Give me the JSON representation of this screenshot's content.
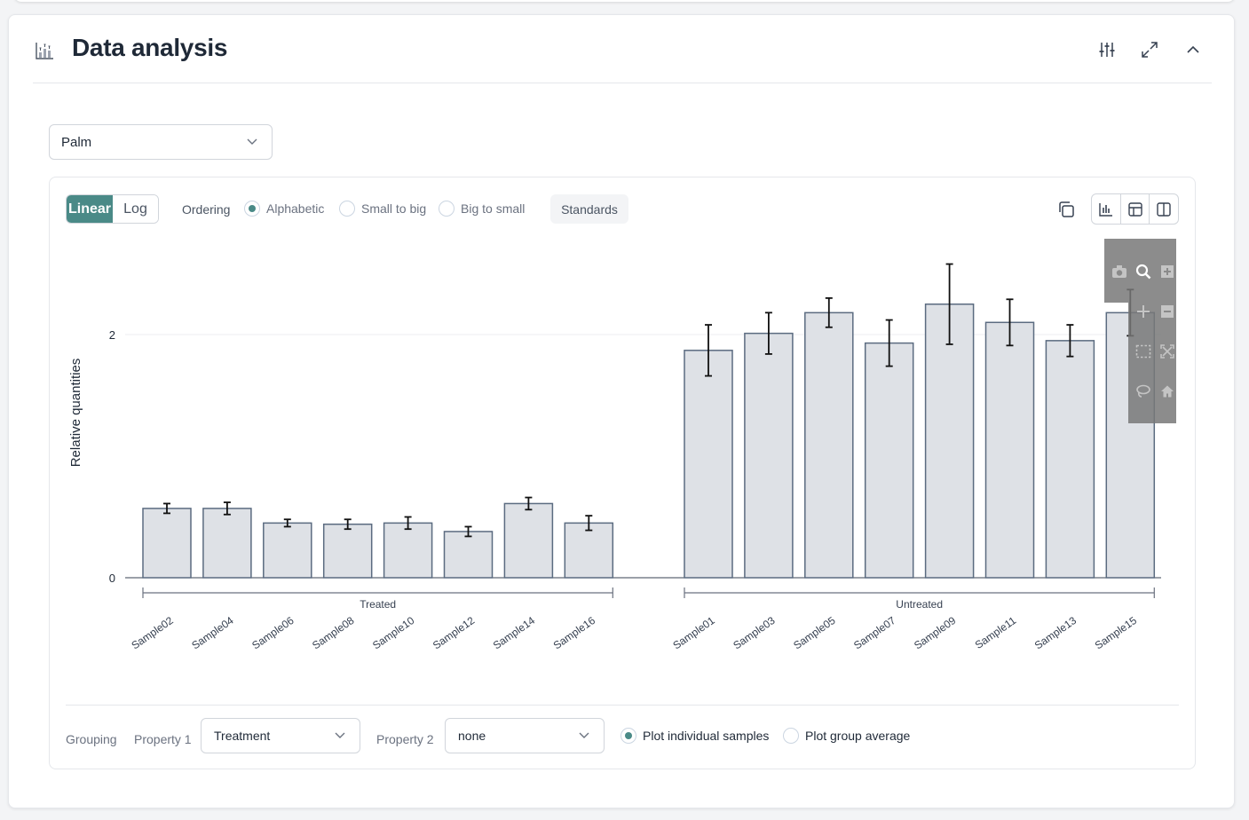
{
  "card": {
    "title": "Data analysis",
    "icons": [
      "chart-icon",
      "sliders-icon",
      "expand-icon",
      "chevron-up-icon"
    ]
  },
  "target_select": {
    "value": "Palm"
  },
  "toolbar": {
    "scale_linear": "Linear",
    "scale_log": "Log",
    "ordering_label": "Ordering",
    "ordering_options": [
      "Alphabetic",
      "Small to big",
      "Big to small"
    ],
    "ordering_selected": "Alphabetic",
    "standards_label": "Standards",
    "accent_color": "#4a8a87"
  },
  "chart_data": {
    "type": "bar",
    "ylabel": "Relative quantities",
    "xlabel": "",
    "ylim": [
      0,
      2.7
    ],
    "yticks": [
      0,
      2
    ],
    "grid": true,
    "groups": [
      {
        "name": "Treated",
        "categories": [
          "Sample02",
          "Sample04",
          "Sample06",
          "Sample08",
          "Sample10",
          "Sample12",
          "Sample14",
          "Sample16"
        ],
        "values": [
          0.57,
          0.57,
          0.45,
          0.44,
          0.45,
          0.38,
          0.61,
          0.45
        ],
        "errors": [
          0.04,
          0.05,
          0.03,
          0.04,
          0.05,
          0.04,
          0.05,
          0.06
        ]
      },
      {
        "name": "Untreated",
        "categories": [
          "Sample01",
          "Sample03",
          "Sample05",
          "Sample07",
          "Sample09",
          "Sample11",
          "Sample13",
          "Sample15"
        ],
        "values": [
          1.87,
          2.01,
          2.18,
          1.93,
          2.25,
          2.1,
          1.95,
          2.18
        ],
        "errors": [
          0.21,
          0.17,
          0.12,
          0.19,
          0.33,
          0.19,
          0.13,
          0.19
        ]
      }
    ],
    "bar_color": "#dee1e6",
    "bar_edge_color": "#5b6b80"
  },
  "footer": {
    "grouping_label": "Grouping",
    "property1_label": "Property 1",
    "property1_value": "Treatment",
    "property2_label": "Property 2",
    "property2_value": "none",
    "plot_options": [
      "Plot individual samples",
      "Plot group average"
    ],
    "plot_selected": "Plot individual samples"
  }
}
